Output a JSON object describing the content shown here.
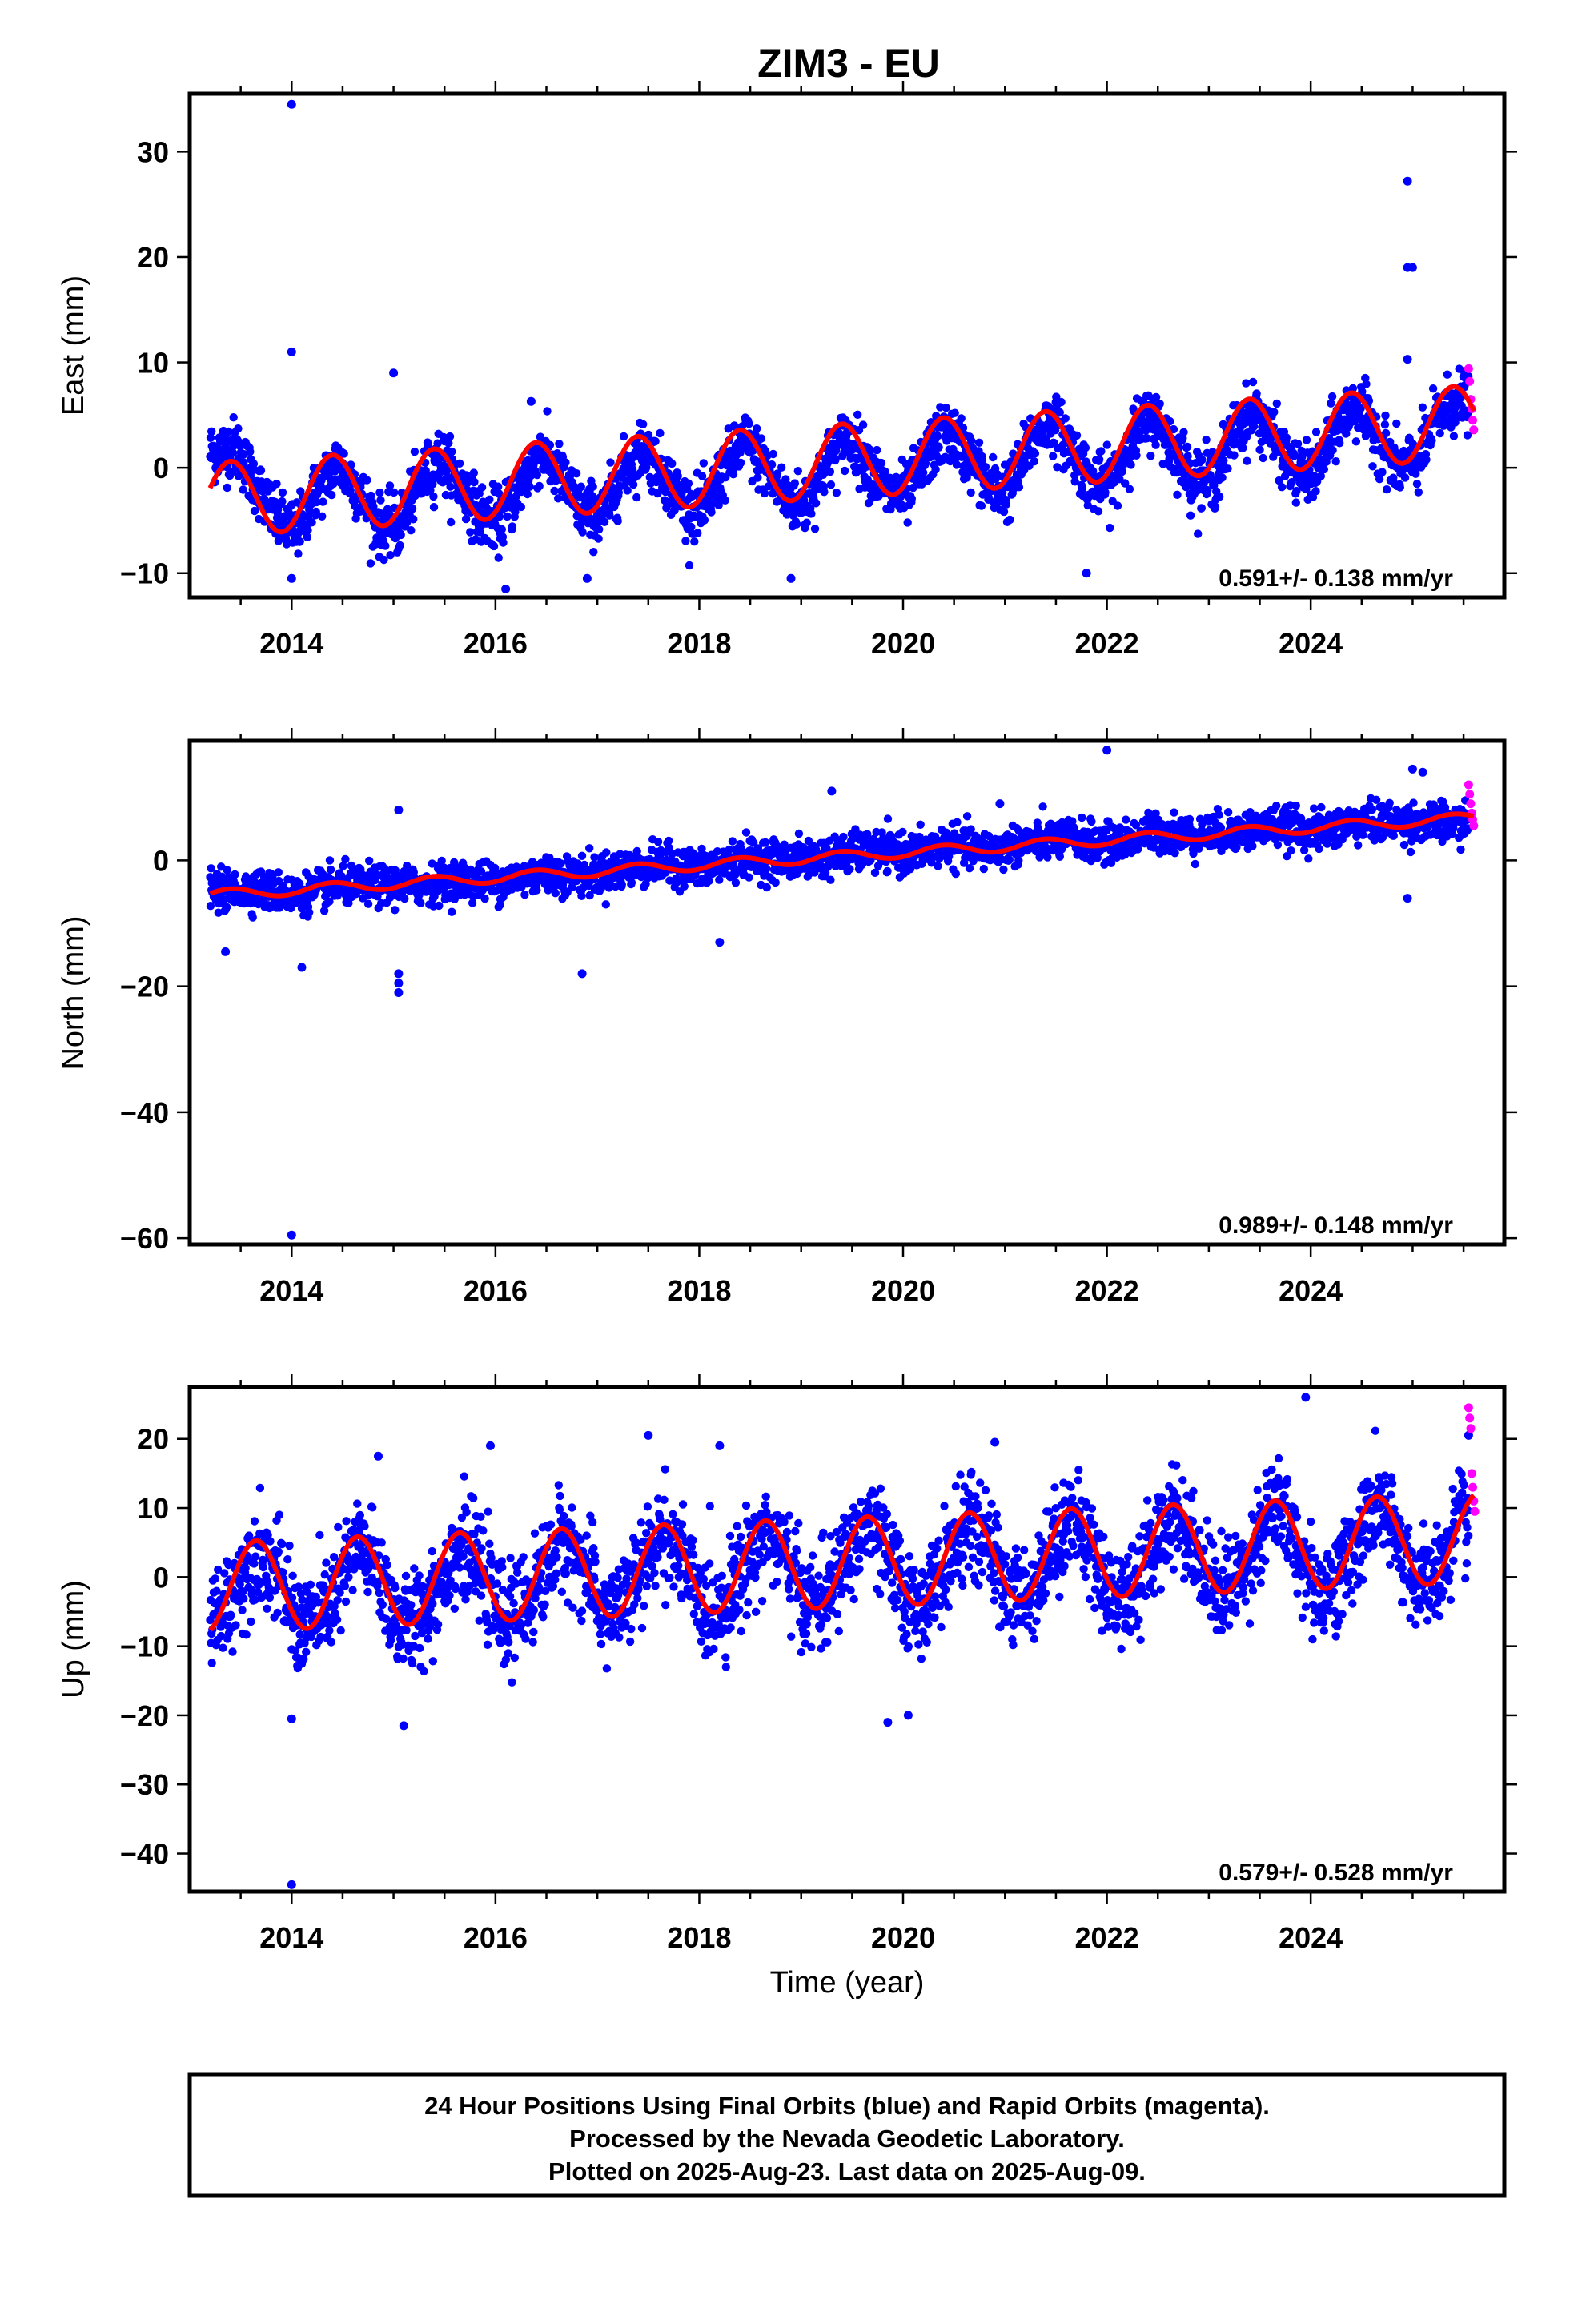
{
  "title": "ZIM3 - EU",
  "x_axis_label": "Time (year)",
  "footer": {
    "line1": "24 Hour Positions Using Final Orbits (blue) and Rapid Orbits (magenta).",
    "line2": "Processed by the Nevada Geodetic Laboratory.",
    "line3": "Plotted on 2025-Aug-23. Last data on 2025-Aug-09."
  },
  "colors": {
    "final": "#0000ff",
    "rapid": "#ff00ff",
    "model": "#ff0000",
    "axis": "#000000"
  },
  "chart_data": [
    {
      "type": "scatter",
      "ylabel": "East (mm)",
      "rate_label": "0.591+/- 0.138 mm/yr",
      "xlim": [
        2013.0,
        2025.9
      ],
      "ylim": [
        -12.3,
        35.5
      ],
      "x_ticks": [
        2014,
        2016,
        2018,
        2020,
        2022,
        2024
      ],
      "y_ticks": [
        -10,
        0,
        10,
        20,
        30
      ],
      "series": [
        {
          "kind": "final_positions",
          "x": [
            2013.25,
            2013.45,
            2013.65,
            2013.85,
            2014.05,
            2014.25,
            2014.45,
            2014.65,
            2014.85,
            2015.05,
            2015.25,
            2015.45,
            2015.65,
            2015.85,
            2016.05,
            2016.25,
            2016.45,
            2016.65,
            2016.85,
            2017.05,
            2017.25,
            2017.45,
            2017.65,
            2017.85,
            2018.05,
            2018.25,
            2018.45,
            2018.65,
            2018.85,
            2019.05,
            2019.25,
            2019.45,
            2019.65,
            2019.85,
            2020.05,
            2020.25,
            2020.45,
            2020.65,
            2020.85,
            2021.05,
            2021.25,
            2021.45,
            2021.65,
            2021.85,
            2022.05,
            2022.25,
            2022.45,
            2022.65,
            2022.85,
            2023.05,
            2023.25,
            2023.45,
            2023.65,
            2023.85,
            2024.05,
            2024.25,
            2024.45,
            2024.65,
            2024.85,
            2025.05,
            2025.25,
            2025.45
          ],
          "y": [
            1.5,
            2.0,
            -1.5,
            -5.0,
            -6.0,
            -2.0,
            0.5,
            -2.0,
            -5.5,
            -5.5,
            -1.5,
            1.0,
            -1.5,
            -4.5,
            -5.0,
            -1.5,
            1.5,
            -1.0,
            -4.0,
            -4.5,
            -0.5,
            2.0,
            -0.5,
            -3.5,
            -4.0,
            0.0,
            2.5,
            0.0,
            -3.0,
            -3.5,
            0.5,
            3.0,
            0.5,
            -2.5,
            -2.5,
            1.5,
            3.5,
            1.0,
            -2.0,
            -2.0,
            2.5,
            4.5,
            2.0,
            -1.5,
            -1.5,
            3.0,
            5.0,
            2.0,
            -1.0,
            -1.0,
            3.5,
            5.5,
            2.5,
            -0.5,
            -0.5,
            4.0,
            6.0,
            3.0,
            0.0,
            0.5,
            5.0,
            6.5
          ],
          "outliers": [
            [
              2014.0,
              34.5
            ],
            [
              2014.0,
              11.0
            ],
            [
              2015.0,
              9.0
            ],
            [
              2016.35,
              6.3
            ],
            [
              2024.95,
              27.2
            ],
            [
              2024.95,
              19.0
            ],
            [
              2025.0,
              19.0
            ],
            [
              2024.95,
              10.3
            ],
            [
              2014.0,
              -10.5
            ],
            [
              2016.1,
              -11.5
            ],
            [
              2016.9,
              -10.5
            ],
            [
              2018.9,
              -10.5
            ],
            [
              2021.8,
              -10.0
            ]
          ]
        },
        {
          "kind": "rapid_positions",
          "x": [
            2025.55,
            2025.56,
            2025.57,
            2025.58,
            2025.59,
            2025.6
          ],
          "y": [
            9.4,
            8.2,
            6.5,
            5.6,
            4.5,
            3.6
          ]
        },
        {
          "kind": "model_fit",
          "offset": -3.0,
          "rate": 0.591,
          "amplitude": 3.5,
          "period": 1.0,
          "phase": 2013.15,
          "start_year": 2013.2,
          "end_year": 2025.6
        }
      ]
    },
    {
      "type": "scatter",
      "ylabel": "North (mm)",
      "rate_label": "0.989+/- 0.148 mm/yr",
      "xlim": [
        2013.0,
        2025.9
      ],
      "ylim": [
        -61.0,
        19.0
      ],
      "x_ticks": [
        2014,
        2016,
        2018,
        2020,
        2022,
        2024
      ],
      "y_ticks": [
        -60,
        -40,
        -20,
        0
      ],
      "series": [
        {
          "kind": "final_positions",
          "x": [
            2013.25,
            2013.65,
            2014.05,
            2014.45,
            2014.85,
            2015.25,
            2015.65,
            2016.05,
            2016.45,
            2016.85,
            2017.25,
            2017.65,
            2018.05,
            2018.45,
            2018.85,
            2019.25,
            2019.65,
            2020.05,
            2020.45,
            2020.85,
            2021.25,
            2021.65,
            2022.05,
            2022.45,
            2022.85,
            2023.25,
            2023.65,
            2024.05,
            2024.45,
            2024.85,
            2025.25
          ],
          "y": [
            -5.0,
            -4.5,
            -5.5,
            -4.0,
            -4.0,
            -4.0,
            -3.0,
            -3.5,
            -2.0,
            -2.5,
            -1.5,
            -0.5,
            -1.5,
            0.5,
            0.0,
            0.5,
            1.5,
            1.0,
            2.5,
            1.5,
            3.0,
            3.5,
            2.5,
            4.5,
            4.0,
            4.5,
            5.5,
            4.5,
            6.0,
            6.0,
            6.0
          ],
          "outliers": [
            [
              2014.0,
              -59.5
            ],
            [
              2013.35,
              -14.5
            ],
            [
              2014.1,
              -17.0
            ],
            [
              2015.05,
              -18.0
            ],
            [
              2015.05,
              -19.5
            ],
            [
              2015.05,
              -21.0
            ],
            [
              2015.05,
              8.0
            ],
            [
              2016.85,
              -18.0
            ],
            [
              2018.2,
              -13.0
            ],
            [
              2019.3,
              11.0
            ],
            [
              2020.95,
              9.0
            ],
            [
              2022.0,
              17.5
            ],
            [
              2024.95,
              -6.0
            ],
            [
              2025.0,
              14.5
            ],
            [
              2025.1,
              14.0
            ]
          ]
        },
        {
          "kind": "rapid_positions",
          "x": [
            2025.55,
            2025.56,
            2025.57,
            2025.58,
            2025.59,
            2025.6
          ],
          "y": [
            12.0,
            10.5,
            9.0,
            7.5,
            6.5,
            5.5
          ]
        },
        {
          "kind": "model_fit",
          "offset": -5.5,
          "rate": 0.989,
          "amplitude": 0.8,
          "period": 1.0,
          "phase": 2013.15,
          "start_year": 2013.2,
          "end_year": 2025.6
        }
      ]
    },
    {
      "type": "scatter",
      "ylabel": "Up (mm)",
      "rate_label": "0.579+/- 0.528 mm/yr",
      "xlim": [
        2013.0,
        2025.9
      ],
      "ylim": [
        -45.5,
        27.5
      ],
      "x_ticks": [
        2014,
        2016,
        2018,
        2020,
        2022,
        2024
      ],
      "y_ticks": [
        -40,
        -30,
        -20,
        -10,
        0,
        10,
        20
      ],
      "series": [
        {
          "kind": "final_positions",
          "x": [
            2013.25,
            2013.45,
            2013.65,
            2013.85,
            2014.05,
            2014.25,
            2014.45,
            2014.65,
            2014.85,
            2015.05,
            2015.25,
            2015.45,
            2015.65,
            2015.85,
            2016.05,
            2016.25,
            2016.45,
            2016.65,
            2016.85,
            2017.05,
            2017.25,
            2017.45,
            2017.65,
            2017.85,
            2018.05,
            2018.25,
            2018.45,
            2018.65,
            2018.85,
            2019.05,
            2019.25,
            2019.45,
            2019.65,
            2019.85,
            2020.05,
            2020.25,
            2020.45,
            2020.65,
            2020.85,
            2021.05,
            2021.25,
            2021.45,
            2021.65,
            2021.85,
            2022.05,
            2022.25,
            2022.45,
            2022.65,
            2022.85,
            2023.05,
            2023.25,
            2023.45,
            2023.65,
            2023.85,
            2024.05,
            2024.25,
            2024.45,
            2024.65,
            2024.85,
            2025.05,
            2025.25,
            2025.45
          ],
          "y": [
            -6.0,
            -2.0,
            4.0,
            1.0,
            -7.0,
            -6.0,
            -2.0,
            5.0,
            1.0,
            -7.0,
            -6.0,
            -1.0,
            5.0,
            1.0,
            -6.0,
            -5.0,
            0.0,
            6.0,
            2.0,
            -5.0,
            -4.0,
            1.0,
            7.0,
            2.0,
            -5.0,
            -4.0,
            2.0,
            7.0,
            3.0,
            -4.0,
            -3.0,
            3.0,
            8.0,
            3.0,
            -4.0,
            -3.0,
            3.0,
            8.0,
            4.0,
            -3.0,
            -2.0,
            4.0,
            9.0,
            4.0,
            -3.0,
            -2.0,
            4.0,
            10.0,
            5.0,
            -2.0,
            -1.0,
            5.0,
            11.0,
            5.0,
            -2.0,
            -1.0,
            5.0,
            11.0,
            5.0,
            -1.0,
            0.0,
            8.0
          ],
          "outliers": [
            [
              2014.0,
              -44.5
            ],
            [
              2014.0,
              -20.5
            ],
            [
              2015.1,
              -21.5
            ],
            [
              2014.85,
              17.5
            ],
            [
              2015.95,
              19.0
            ],
            [
              2017.5,
              20.5
            ],
            [
              2018.2,
              19.0
            ],
            [
              2019.85,
              -21.0
            ],
            [
              2020.05,
              -20.0
            ],
            [
              2020.9,
              19.5
            ],
            [
              2023.95,
              26.0
            ],
            [
              2025.55,
              20.5
            ]
          ]
        },
        {
          "kind": "rapid_positions",
          "x": [
            2025.55,
            2025.56,
            2025.57,
            2025.58,
            2025.59,
            2025.6,
            2025.61
          ],
          "y": [
            24.5,
            23.0,
            21.5,
            15.0,
            13.0,
            11.0,
            9.5
          ]
        },
        {
          "kind": "model_fit",
          "offset": -1.5,
          "rate": 0.579,
          "amplitude": 6.5,
          "period": 1.0,
          "phase": 2013.4,
          "start_year": 2013.2,
          "end_year": 2025.6
        }
      ]
    }
  ]
}
